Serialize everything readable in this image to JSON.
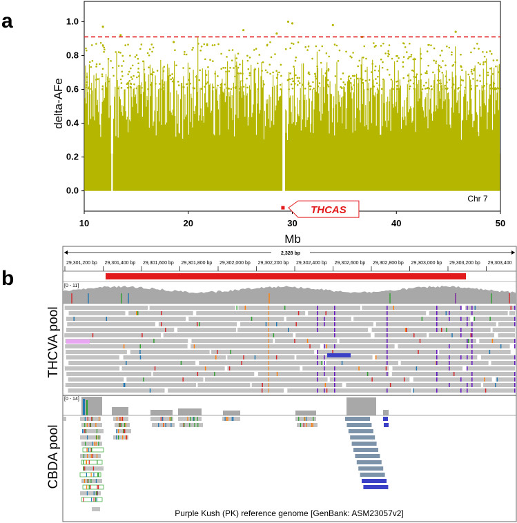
{
  "panel_a": {
    "label": "a",
    "chart_data": {
      "type": "scatter",
      "xlabel": "Mb",
      "ylabel": "delta-AFe",
      "xlim": [
        10,
        50
      ],
      "ylim": [
        -0.12,
        1.12
      ],
      "x_ticks": [
        "10",
        "20",
        "30",
        "40",
        "50"
      ],
      "y_ticks": [
        "0.0",
        "0.2",
        "0.4",
        "0.6",
        "0.8",
        "1.0"
      ],
      "threshold": 0.91,
      "threshold_color": "#e31a1c",
      "point_color": "#b5b600",
      "gap_mb": [
        12.6,
        12.75
      ],
      "gap2_mb": [
        29.05,
        29.3
      ],
      "marker": {
        "label": "THCAS",
        "x": 29.1,
        "y": -0.1,
        "color": "#e31a1c"
      },
      "chromosome": "Chr 7",
      "peaks": [
        {
          "x": 11.8,
          "y": 0.97
        },
        {
          "x": 13.5,
          "y": 0.92
        },
        {
          "x": 18.6,
          "y": 0.88
        },
        {
          "x": 25.3,
          "y": 0.95
        },
        {
          "x": 28.5,
          "y": 0.93
        },
        {
          "x": 29.6,
          "y": 1.0
        },
        {
          "x": 30.0,
          "y": 0.99
        },
        {
          "x": 33.9,
          "y": 0.98
        },
        {
          "x": 36.7,
          "y": 0.91
        },
        {
          "x": 45.7,
          "y": 0.94
        }
      ]
    }
  },
  "panel_b": {
    "label": "b",
    "span": "2,328 bp",
    "ruler": [
      "29,301,200 bp",
      "29,301,400 bp",
      "29,301,600 bp",
      "29,301,800 bp",
      "29,302,000 bp",
      "29,302,200 bp",
      "29,302,400 bp",
      "29,302,600 bp",
      "29,302,800 bp",
      "29,303,000 bp",
      "29,303,200 bp",
      "29,303,400"
    ],
    "gene_color": "#e31a1c",
    "thcva": {
      "label": "THCVA pool",
      "range": "[0 - 11]"
    },
    "cbda": {
      "label": "CBDA pool",
      "range": "[0 - 14]"
    },
    "caption": "Purple Kush (PK) reference genome [GenBank: ASM23057v2]"
  }
}
